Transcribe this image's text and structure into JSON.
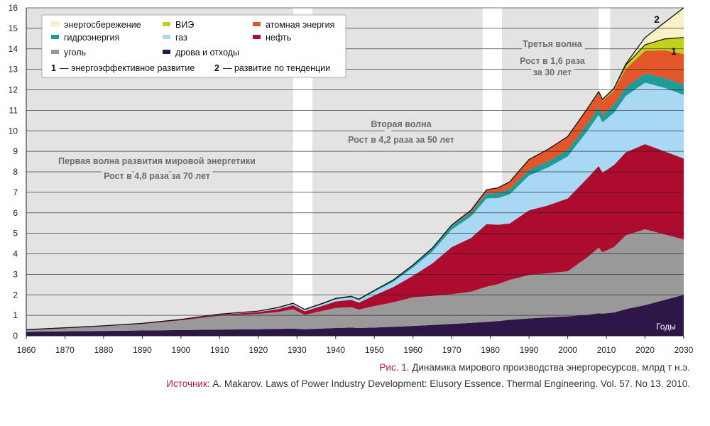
{
  "chart_data": {
    "type": "area",
    "xlim": [
      1860,
      2030
    ],
    "ylim": [
      0,
      16
    ],
    "x_ticks": [
      1860,
      1870,
      1880,
      1890,
      1900,
      1910,
      1920,
      1930,
      1940,
      1950,
      1960,
      1970,
      1980,
      1990,
      2000,
      2010,
      2020,
      2030
    ],
    "y_ticks": [
      0,
      1,
      2,
      3,
      4,
      5,
      6,
      7,
      8,
      9,
      10,
      11,
      12,
      13,
      14,
      15,
      16
    ],
    "xlabel": "Годы",
    "grid": "horizontal",
    "x": [
      1860,
      1870,
      1880,
      1890,
      1900,
      1910,
      1920,
      1925,
      1929,
      1932,
      1937,
      1940,
      1944,
      1946,
      1950,
      1955,
      1960,
      1965,
      1970,
      1975,
      1979,
      1982,
      1985,
      1990,
      1995,
      2000,
      2005,
      2008,
      2009,
      2012,
      2015,
      2020,
      2025,
      2030
    ],
    "series": [
      {
        "name": "дрова и отходы",
        "color": "#2e1748",
        "values": [
          0.2,
          0.22,
          0.24,
          0.26,
          0.28,
          0.3,
          0.32,
          0.34,
          0.35,
          0.32,
          0.36,
          0.38,
          0.4,
          0.38,
          0.4,
          0.44,
          0.48,
          0.53,
          0.58,
          0.63,
          0.68,
          0.72,
          0.78,
          0.85,
          0.9,
          0.95,
          1.02,
          1.1,
          1.08,
          1.14,
          1.3,
          1.5,
          1.75,
          2.0
        ]
      },
      {
        "name": "уголь",
        "color": "#999999",
        "values": [
          0.1,
          0.16,
          0.24,
          0.32,
          0.48,
          0.68,
          0.75,
          0.82,
          0.95,
          0.7,
          0.88,
          0.98,
          1.0,
          0.9,
          1.05,
          1.2,
          1.4,
          1.42,
          1.45,
          1.52,
          1.72,
          1.8,
          1.95,
          2.12,
          2.15,
          2.2,
          2.8,
          3.2,
          3.0,
          3.2,
          3.6,
          3.7,
          3.2,
          2.7
        ]
      },
      {
        "name": "нефть",
        "color": "#ad0c2e",
        "values": [
          0.0,
          0.01,
          0.01,
          0.02,
          0.03,
          0.05,
          0.09,
          0.14,
          0.19,
          0.18,
          0.25,
          0.32,
          0.36,
          0.34,
          0.52,
          0.75,
          1.05,
          1.58,
          2.3,
          2.62,
          3.05,
          2.9,
          2.75,
          3.15,
          3.32,
          3.55,
          3.85,
          3.98,
          3.88,
          4.0,
          4.05,
          4.15,
          4.05,
          3.95
        ]
      },
      {
        "name": "газ",
        "color": "#a8d8f4",
        "values": [
          0.0,
          0.0,
          0.0,
          0.01,
          0.01,
          0.02,
          0.03,
          0.05,
          0.07,
          0.06,
          0.08,
          0.1,
          0.12,
          0.12,
          0.18,
          0.26,
          0.4,
          0.58,
          0.85,
          1.05,
          1.25,
          1.3,
          1.42,
          1.7,
          1.85,
          2.05,
          2.3,
          2.5,
          2.45,
          2.55,
          2.75,
          3.0,
          3.1,
          3.1
        ]
      },
      {
        "name": "гидроэнергия",
        "color": "#1f9c98",
        "values": [
          0.0,
          0.0,
          0.0,
          0.0,
          0.0,
          0.01,
          0.02,
          0.03,
          0.03,
          0.03,
          0.04,
          0.05,
          0.05,
          0.05,
          0.07,
          0.09,
          0.12,
          0.15,
          0.18,
          0.21,
          0.24,
          0.25,
          0.26,
          0.28,
          0.3,
          0.32,
          0.35,
          0.37,
          0.37,
          0.39,
          0.42,
          0.45,
          0.48,
          0.5
        ]
      },
      {
        "name": "атомная энергия",
        "color": "#e2562a",
        "values": [
          0,
          0,
          0,
          0,
          0,
          0,
          0,
          0,
          0,
          0,
          0,
          0,
          0,
          0,
          0,
          0.0,
          0.01,
          0.02,
          0.05,
          0.1,
          0.18,
          0.25,
          0.35,
          0.5,
          0.58,
          0.63,
          0.7,
          0.7,
          0.68,
          0.7,
          0.9,
          1.1,
          1.35,
          1.5
        ]
      },
      {
        "name": "ВИЭ",
        "color": "#c2d11e",
        "values": [
          0,
          0,
          0,
          0,
          0,
          0,
          0,
          0,
          0,
          0,
          0,
          0,
          0,
          0,
          0,
          0,
          0,
          0,
          0,
          0,
          0,
          0,
          0,
          0,
          0.01,
          0.02,
          0.04,
          0.06,
          0.07,
          0.1,
          0.18,
          0.3,
          0.55,
          0.8
        ]
      },
      {
        "name": "энергосбережение",
        "color": "#fbf1c8",
        "values": [
          0,
          0,
          0,
          0,
          0,
          0,
          0,
          0,
          0,
          0,
          0,
          0,
          0,
          0,
          0,
          0,
          0,
          0,
          0,
          0,
          0,
          0,
          0,
          0,
          0,
          0,
          0,
          0,
          0,
          0,
          0.05,
          0.35,
          0.8,
          1.45
        ]
      }
    ],
    "line_labels": [
      {
        "id": "1",
        "label": "энергоэффективное развитие"
      },
      {
        "id": "2",
        "label": "развитие по тенденции"
      }
    ],
    "white_bands": [
      [
        1929,
        1934
      ],
      [
        1978,
        1983
      ],
      [
        2008,
        2011
      ]
    ],
    "annotations": [
      {
        "lines": [
          "Первая волна развития мировой энергетики",
          "Рост в 4,8 раза за 70 лет"
        ]
      },
      {
        "lines": [
          "Вторая волна",
          "Рост в 4,2 раза за 50 лет"
        ]
      },
      {
        "lines": [
          "Третья волна",
          "Рост в 1,6 раза",
          "за 30 лет"
        ]
      }
    ]
  },
  "caption": {
    "figure_label": "Рис. 1.",
    "figure_text": " Динамика мирового производства энергоресурсов, млрд т н.э.",
    "source_label": "Источник:",
    "source_text": " A. Makarov. Laws of Power Industry Development: Elusory Essence. Thermal Engineering. Vol. 57. No 13. 2010."
  }
}
